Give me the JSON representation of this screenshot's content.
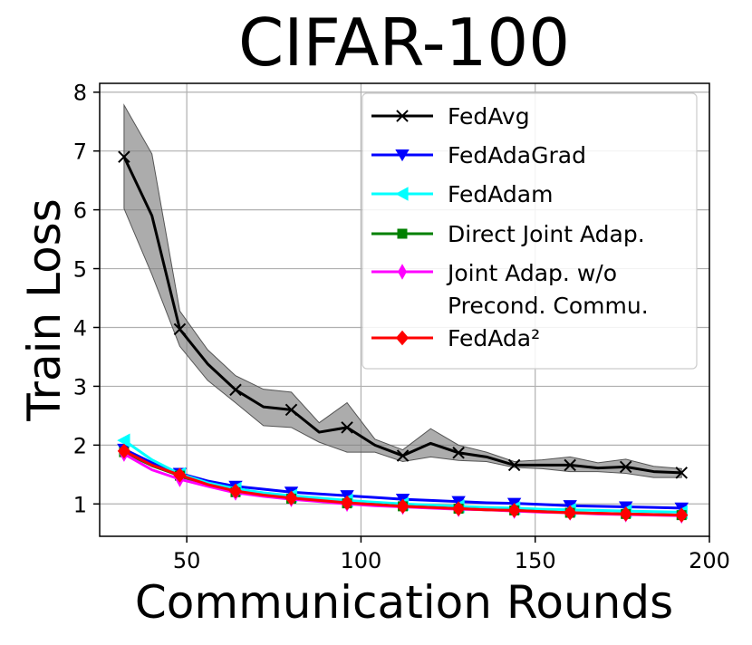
{
  "chart_data": {
    "type": "line",
    "title": "CIFAR-100",
    "xlabel": "Communication Rounds",
    "ylabel": "Train Loss",
    "xlim": [
      25,
      200
    ],
    "ylim": [
      0.45,
      8.15
    ],
    "xticks": [
      50,
      100,
      150,
      200
    ],
    "yticks": [
      1,
      2,
      3,
      4,
      5,
      6,
      7,
      8
    ],
    "grid": true,
    "legend_position": "top-right",
    "series": [
      {
        "name": "FedAvg",
        "color": "#000000",
        "marker": "x",
        "x": [
          32,
          40,
          48,
          56,
          64,
          72,
          80,
          88,
          96,
          104,
          112,
          120,
          128,
          136,
          144,
          152,
          160,
          168,
          176,
          184,
          192
        ],
        "y": [
          6.9,
          5.9,
          3.97,
          3.38,
          2.94,
          2.65,
          2.6,
          2.22,
          2.3,
          2.0,
          1.82,
          2.03,
          1.87,
          1.8,
          1.66,
          1.66,
          1.66,
          1.61,
          1.63,
          1.55,
          1.53
        ],
        "band_lower": [
          6.02,
          4.9,
          3.68,
          3.1,
          2.72,
          2.33,
          2.3,
          2.05,
          1.88,
          1.88,
          1.72,
          1.8,
          1.74,
          1.72,
          1.62,
          1.6,
          1.55,
          1.55,
          1.52,
          1.45,
          1.45
        ],
        "band_upper": [
          7.78,
          6.95,
          4.28,
          3.62,
          3.18,
          2.95,
          2.9,
          2.38,
          2.72,
          2.1,
          1.92,
          2.28,
          2.0,
          1.88,
          1.72,
          1.75,
          1.8,
          1.7,
          1.76,
          1.64,
          1.6
        ]
      },
      {
        "name": "FedAdaGrad",
        "color": "#0000ff",
        "marker": "triangle-down",
        "x": [
          32,
          40,
          48,
          56,
          64,
          72,
          80,
          88,
          96,
          104,
          112,
          120,
          128,
          136,
          144,
          152,
          160,
          168,
          176,
          184,
          192
        ],
        "y": [
          1.93,
          1.7,
          1.52,
          1.39,
          1.3,
          1.25,
          1.2,
          1.17,
          1.14,
          1.11,
          1.08,
          1.06,
          1.04,
          1.02,
          1.01,
          0.99,
          0.97,
          0.96,
          0.95,
          0.94,
          0.93
        ]
      },
      {
        "name": "FedAdam",
        "color": "#00ffff",
        "marker": "triangle-left",
        "x": [
          32,
          40,
          48,
          56,
          64,
          72,
          80,
          88,
          96,
          104,
          112,
          120,
          128,
          136,
          144,
          152,
          160,
          168,
          176,
          184,
          192
        ],
        "y": [
          2.08,
          1.75,
          1.51,
          1.36,
          1.26,
          1.19,
          1.14,
          1.1,
          1.06,
          1.03,
          1.0,
          0.98,
          0.96,
          0.94,
          0.93,
          0.91,
          0.9,
          0.89,
          0.88,
          0.87,
          0.86
        ]
      },
      {
        "name": "Direct Joint Adap.",
        "color": "#008000",
        "marker": "square",
        "x": [
          32,
          40,
          48,
          56,
          64,
          72,
          80,
          88,
          96,
          104,
          112,
          120,
          128,
          136,
          144,
          152,
          160,
          168,
          176,
          184,
          192
        ],
        "y": [
          1.88,
          1.65,
          1.48,
          1.31,
          1.2,
          1.14,
          1.09,
          1.05,
          1.01,
          0.99,
          0.96,
          0.94,
          0.92,
          0.9,
          0.89,
          0.87,
          0.85,
          0.84,
          0.83,
          0.82,
          0.81
        ]
      },
      {
        "name": "Joint Adap. w/o\nPrecond. Commu.",
        "color": "#ff00ff",
        "marker": "diamond-thin",
        "x": [
          32,
          40,
          48,
          56,
          64,
          72,
          80,
          88,
          96,
          104,
          112,
          120,
          128,
          136,
          144,
          152,
          160,
          168,
          176,
          184,
          192
        ],
        "y": [
          1.85,
          1.58,
          1.42,
          1.3,
          1.19,
          1.13,
          1.08,
          1.04,
          1.0,
          0.97,
          0.95,
          0.93,
          0.91,
          0.9,
          0.88,
          0.86,
          0.85,
          0.83,
          0.82,
          0.81,
          0.8
        ]
      },
      {
        "name": "FedAda²",
        "color": "#ff0000",
        "marker": "diamond",
        "x": [
          32,
          40,
          48,
          56,
          64,
          72,
          80,
          88,
          96,
          104,
          112,
          120,
          128,
          136,
          144,
          152,
          160,
          168,
          176,
          184,
          192
        ],
        "y": [
          1.9,
          1.66,
          1.49,
          1.33,
          1.22,
          1.15,
          1.1,
          1.06,
          1.02,
          0.99,
          0.96,
          0.94,
          0.92,
          0.9,
          0.89,
          0.87,
          0.85,
          0.84,
          0.83,
          0.82,
          0.81
        ]
      }
    ]
  }
}
